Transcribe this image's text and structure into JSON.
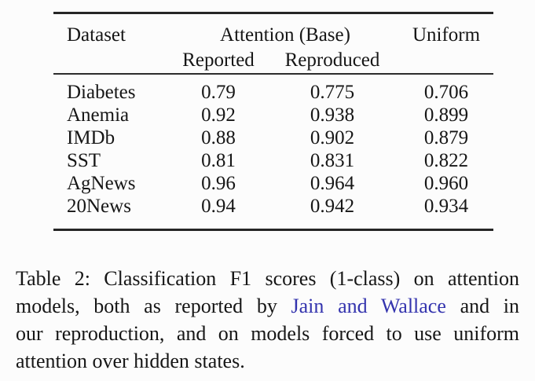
{
  "table": {
    "header": {
      "dataset": "Dataset",
      "group": "Attention (Base)",
      "reported": "Reported",
      "reproduced": "Reproduced",
      "uniform": "Uniform"
    },
    "rows": [
      {
        "dataset": "Diabetes",
        "reported": "0.79",
        "reproduced": "0.775",
        "uniform": "0.706"
      },
      {
        "dataset": "Anemia",
        "reported": "0.92",
        "reproduced": "0.938",
        "uniform": "0.899"
      },
      {
        "dataset": "IMDb",
        "reported": "0.88",
        "reproduced": "0.902",
        "uniform": "0.879"
      },
      {
        "dataset": "SST",
        "reported": "0.81",
        "reproduced": "0.831",
        "uniform": "0.822"
      },
      {
        "dataset": "AgNews",
        "reported": "0.96",
        "reproduced": "0.964",
        "uniform": "0.960"
      },
      {
        "dataset": "20News",
        "reported": "0.94",
        "reproduced": "0.942",
        "uniform": "0.934"
      }
    ]
  },
  "caption": {
    "line1": "Table 2: Classification F1 scores (1-class) on attention",
    "line2_prefix": "models, both as reported by",
    "line2_link": "Jain and Wallace",
    "line2_suffix": "and in",
    "line3": "our reproduction, and on models forced to use uniform",
    "line4": "attention over hidden states."
  },
  "chart_data": {
    "type": "table",
    "title": "Table 2: Classification F1 scores (1-class)",
    "categories": [
      "Diabetes",
      "Anemia",
      "IMDb",
      "SST",
      "AgNews",
      "20News"
    ],
    "series": [
      {
        "name": "Attention (Base) Reported",
        "values": [
          0.79,
          0.92,
          0.88,
          0.81,
          0.96,
          0.94
        ]
      },
      {
        "name": "Attention (Base) Reproduced",
        "values": [
          0.775,
          0.938,
          0.902,
          0.831,
          0.964,
          0.942
        ]
      },
      {
        "name": "Uniform",
        "values": [
          0.706,
          0.899,
          0.879,
          0.822,
          0.96,
          0.934
        ]
      }
    ]
  },
  "colors": {
    "link": "#3434ae",
    "text": "#161616",
    "rule": "#262626",
    "background": "#fcfcfc"
  }
}
